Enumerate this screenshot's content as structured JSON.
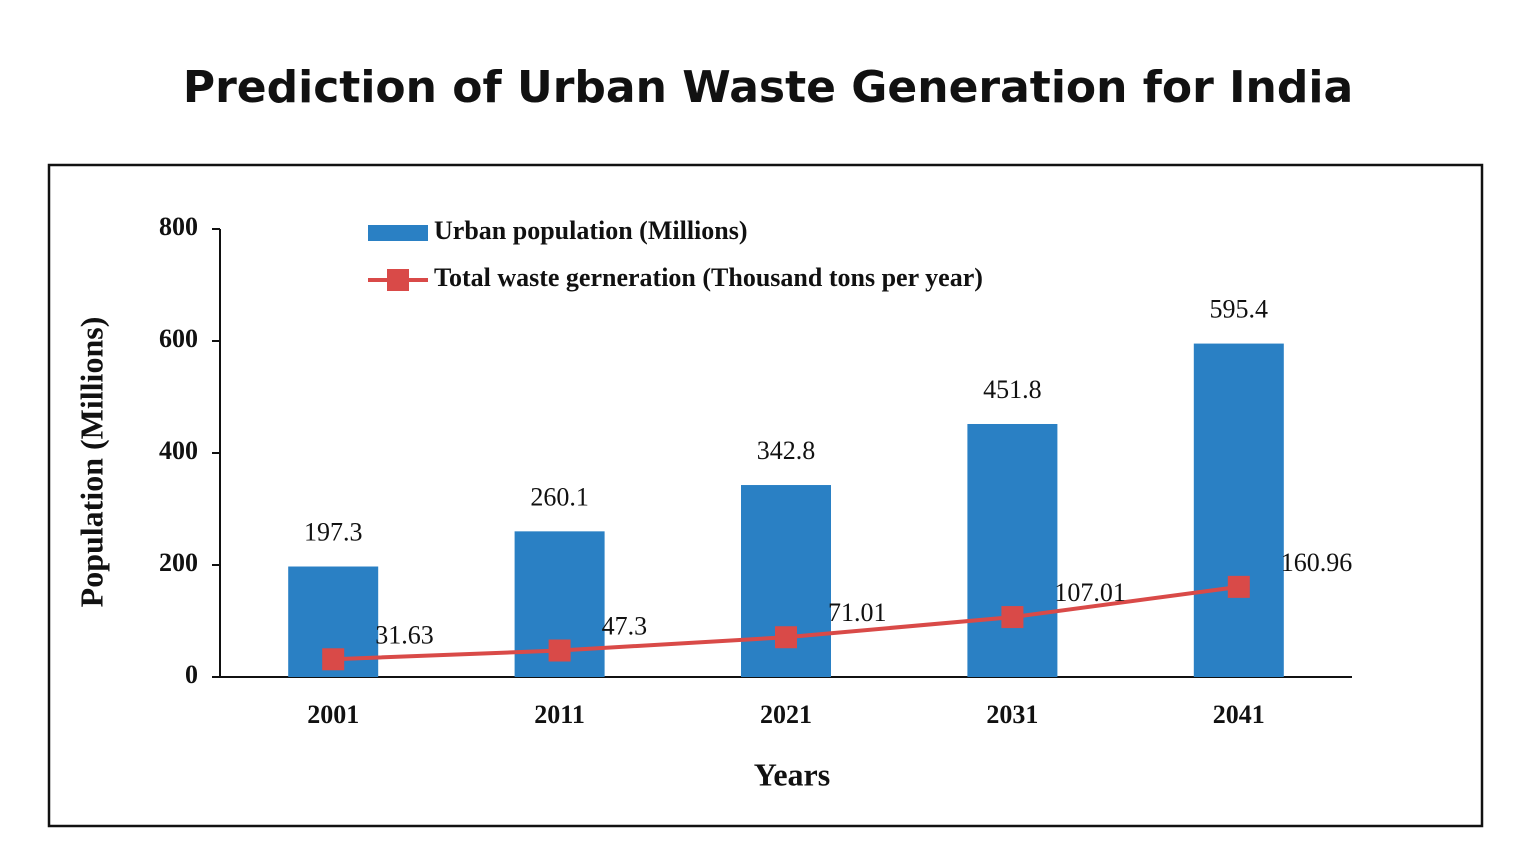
{
  "chart_data": {
    "type": "bar",
    "title": "Prediction of Urban Waste Generation for India",
    "x_label": "Years",
    "y_label": "Population (Millions)",
    "categories": [
      "2001",
      "2011",
      "2021",
      "2031",
      "2041"
    ],
    "series": [
      {
        "name": "Urban population (Millions)",
        "type": "bar",
        "color": "#2a80c4",
        "values": [
          197.3,
          260.1,
          342.8,
          451.8,
          595.4
        ]
      },
      {
        "name": "Total waste gerneration (Thousand tons per year)",
        "type": "line",
        "color": "#d94a48",
        "values": [
          31.63,
          47.3,
          71.01,
          107.01,
          160.96
        ]
      }
    ],
    "ylim": [
      0,
      800
    ],
    "yticks": [
      0,
      200,
      400,
      600,
      800
    ],
    "grid": false,
    "legend": "top"
  }
}
